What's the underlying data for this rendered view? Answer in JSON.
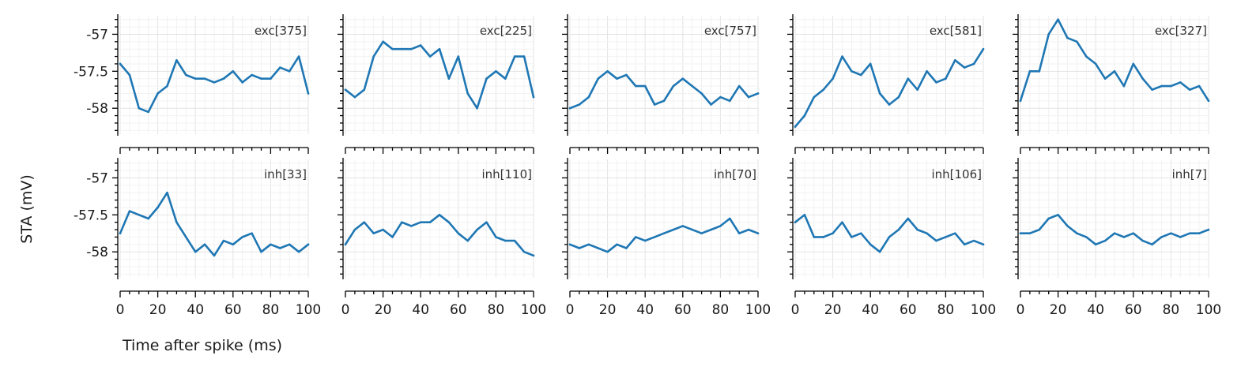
{
  "figure": {
    "ylabel": "STA (mV)",
    "xlabel": "Time after spike (ms)",
    "line_color": "#1f77b4",
    "grid": true
  },
  "chart_data": [
    {
      "type": "line",
      "label": "exc[375]",
      "x": [
        0,
        5,
        10,
        15,
        20,
        25,
        30,
        35,
        40,
        45,
        50,
        55,
        60,
        65,
        70,
        75,
        80,
        85,
        90,
        95,
        100
      ],
      "y": [
        -57.4,
        -57.55,
        -58.0,
        -58.05,
        -57.8,
        -57.7,
        -57.35,
        -57.55,
        -57.6,
        -57.6,
        -57.65,
        -57.6,
        -57.5,
        -57.65,
        -57.55,
        -57.6,
        -57.6,
        -57.45,
        -57.5,
        -57.3,
        -57.8
      ],
      "xlim": [
        0,
        100
      ],
      "ylim": [
        -58.35,
        -56.75
      ],
      "yticks": [
        -58,
        -57.5,
        -57
      ],
      "yticklabels": [
        "-58",
        "-57.5",
        "-57"
      ],
      "xticks": [
        0,
        20,
        40,
        60,
        80,
        100
      ],
      "xticklabels": [
        "0",
        "20",
        "40",
        "60",
        "80",
        "100"
      ]
    },
    {
      "type": "line",
      "label": "exc[225]",
      "x": [
        0,
        5,
        10,
        15,
        20,
        25,
        30,
        35,
        40,
        45,
        50,
        55,
        60,
        65,
        70,
        75,
        80,
        85,
        90,
        95,
        100
      ],
      "y": [
        -57.75,
        -57.85,
        -57.75,
        -57.3,
        -57.1,
        -57.2,
        -57.2,
        -57.2,
        -57.15,
        -57.3,
        -57.2,
        -57.6,
        -57.3,
        -57.8,
        -58.0,
        -57.6,
        -57.5,
        -57.6,
        -57.3,
        -57.3,
        -57.85
      ],
      "xlim": [
        0,
        100
      ],
      "ylim": [
        -58.35,
        -56.75
      ],
      "yticks": [
        -58,
        -57.5,
        -57
      ],
      "yticklabels": [
        "-58",
        "-57.5",
        "-57"
      ],
      "xticks": [
        0,
        20,
        40,
        60,
        80,
        100
      ],
      "xticklabels": [
        "0",
        "20",
        "40",
        "60",
        "80",
        "100"
      ]
    },
    {
      "type": "line",
      "label": "exc[757]",
      "x": [
        0,
        5,
        10,
        15,
        20,
        25,
        30,
        35,
        40,
        45,
        50,
        55,
        60,
        65,
        70,
        75,
        80,
        85,
        90,
        95,
        100
      ],
      "y": [
        -58.0,
        -57.95,
        -57.85,
        -57.6,
        -57.5,
        -57.6,
        -57.55,
        -57.7,
        -57.7,
        -57.95,
        -57.9,
        -57.7,
        -57.6,
        -57.7,
        -57.8,
        -57.95,
        -57.85,
        -57.9,
        -57.7,
        -57.85,
        -57.8
      ],
      "xlim": [
        0,
        100
      ],
      "ylim": [
        -58.35,
        -56.75
      ],
      "yticks": [
        -58,
        -57.5,
        -57
      ],
      "yticklabels": [
        "-58",
        "-57.5",
        "-57"
      ],
      "xticks": [
        0,
        20,
        40,
        60,
        80,
        100
      ],
      "xticklabels": [
        "0",
        "20",
        "40",
        "60",
        "80",
        "100"
      ]
    },
    {
      "type": "line",
      "label": "exc[581]",
      "x": [
        0,
        5,
        10,
        15,
        20,
        25,
        30,
        35,
        40,
        45,
        50,
        55,
        60,
        65,
        70,
        75,
        80,
        85,
        90,
        95,
        100
      ],
      "y": [
        -58.25,
        -58.1,
        -57.85,
        -57.75,
        -57.6,
        -57.3,
        -57.5,
        -57.55,
        -57.4,
        -57.8,
        -57.95,
        -57.85,
        -57.6,
        -57.75,
        -57.5,
        -57.65,
        -57.6,
        -57.35,
        -57.45,
        -57.4,
        -57.2
      ],
      "xlim": [
        0,
        100
      ],
      "ylim": [
        -58.35,
        -56.75
      ],
      "yticks": [
        -58,
        -57.5,
        -57
      ],
      "yticklabels": [
        "-58",
        "-57.5",
        "-57"
      ],
      "xticks": [
        0,
        20,
        40,
        60,
        80,
        100
      ],
      "xticklabels": [
        "0",
        "20",
        "40",
        "60",
        "80",
        "100"
      ]
    },
    {
      "type": "line",
      "label": "exc[327]",
      "x": [
        0,
        5,
        10,
        15,
        20,
        25,
        30,
        35,
        40,
        45,
        50,
        55,
        60,
        65,
        70,
        75,
        80,
        85,
        90,
        95,
        100
      ],
      "y": [
        -57.9,
        -57.5,
        -57.5,
        -57.0,
        -56.8,
        -57.05,
        -57.1,
        -57.3,
        -57.4,
        -57.6,
        -57.5,
        -57.7,
        -57.4,
        -57.6,
        -57.75,
        -57.7,
        -57.7,
        -57.65,
        -57.75,
        -57.7,
        -57.9
      ],
      "xlim": [
        0,
        100
      ],
      "ylim": [
        -58.35,
        -56.75
      ],
      "yticks": [
        -58,
        -57.5,
        -57
      ],
      "yticklabels": [
        "-58",
        "-57.5",
        "-57"
      ],
      "xticks": [
        0,
        20,
        40,
        60,
        80,
        100
      ],
      "xticklabels": [
        "0",
        "20",
        "40",
        "60",
        "80",
        "100"
      ]
    },
    {
      "type": "line",
      "label": "inh[33]",
      "x": [
        0,
        5,
        10,
        15,
        20,
        25,
        30,
        35,
        40,
        45,
        50,
        55,
        60,
        65,
        70,
        75,
        80,
        85,
        90,
        95,
        100
      ],
      "y": [
        -57.75,
        -57.45,
        -57.5,
        -57.55,
        -57.4,
        -57.2,
        -57.6,
        -57.8,
        -58.0,
        -57.9,
        -58.05,
        -57.85,
        -57.9,
        -57.8,
        -57.75,
        -58.0,
        -57.9,
        -57.95,
        -57.9,
        -58.0,
        -57.9
      ],
      "xlim": [
        0,
        100
      ],
      "ylim": [
        -58.35,
        -56.75
      ],
      "yticks": [
        -58,
        -57.5,
        -57
      ],
      "yticklabels": [
        "-58",
        "-57.5",
        "-57"
      ],
      "xticks": [
        0,
        20,
        40,
        60,
        80,
        100
      ],
      "xticklabels": [
        "0",
        "20",
        "40",
        "60",
        "80",
        "100"
      ]
    },
    {
      "type": "line",
      "label": "inh[110]",
      "x": [
        0,
        5,
        10,
        15,
        20,
        25,
        30,
        35,
        40,
        45,
        50,
        55,
        60,
        65,
        70,
        75,
        80,
        85,
        90,
        95,
        100
      ],
      "y": [
        -57.9,
        -57.7,
        -57.6,
        -57.75,
        -57.7,
        -57.8,
        -57.6,
        -57.65,
        -57.6,
        -57.6,
        -57.5,
        -57.6,
        -57.75,
        -57.85,
        -57.7,
        -57.6,
        -57.8,
        -57.85,
        -57.85,
        -58.0,
        -58.05
      ],
      "xlim": [
        0,
        100
      ],
      "ylim": [
        -58.35,
        -56.75
      ],
      "yticks": [
        -58,
        -57.5,
        -57
      ],
      "yticklabels": [
        "-58",
        "-57.5",
        "-57"
      ],
      "xticks": [
        0,
        20,
        40,
        60,
        80,
        100
      ],
      "xticklabels": [
        "0",
        "20",
        "40",
        "60",
        "80",
        "100"
      ]
    },
    {
      "type": "line",
      "label": "inh[70]",
      "x": [
        0,
        5,
        10,
        15,
        20,
        25,
        30,
        35,
        40,
        45,
        50,
        55,
        60,
        65,
        70,
        75,
        80,
        85,
        90,
        95,
        100
      ],
      "y": [
        -57.9,
        -57.95,
        -57.9,
        -57.95,
        -58.0,
        -57.9,
        -57.95,
        -57.8,
        -57.85,
        -57.8,
        -57.75,
        -57.7,
        -57.65,
        -57.7,
        -57.75,
        -57.7,
        -57.65,
        -57.55,
        -57.75,
        -57.7,
        -57.75
      ],
      "xlim": [
        0,
        100
      ],
      "ylim": [
        -58.35,
        -56.75
      ],
      "yticks": [
        -58,
        -57.5,
        -57
      ],
      "yticklabels": [
        "-58",
        "-57.5",
        "-57"
      ],
      "xticks": [
        0,
        20,
        40,
        60,
        80,
        100
      ],
      "xticklabels": [
        "0",
        "20",
        "40",
        "60",
        "80",
        "100"
      ]
    },
    {
      "type": "line",
      "label": "inh[106]",
      "x": [
        0,
        5,
        10,
        15,
        20,
        25,
        30,
        35,
        40,
        45,
        50,
        55,
        60,
        65,
        70,
        75,
        80,
        85,
        90,
        95,
        100
      ],
      "y": [
        -57.6,
        -57.5,
        -57.8,
        -57.8,
        -57.75,
        -57.6,
        -57.8,
        -57.75,
        -57.9,
        -58.0,
        -57.8,
        -57.7,
        -57.55,
        -57.7,
        -57.75,
        -57.85,
        -57.8,
        -57.75,
        -57.9,
        -57.85,
        -57.9
      ],
      "xlim": [
        0,
        100
      ],
      "ylim": [
        -58.35,
        -56.75
      ],
      "yticks": [
        -58,
        -57.5,
        -57
      ],
      "yticklabels": [
        "-58",
        "-57.5",
        "-57"
      ],
      "xticks": [
        0,
        20,
        40,
        60,
        80,
        100
      ],
      "xticklabels": [
        "0",
        "20",
        "40",
        "60",
        "80",
        "100"
      ]
    },
    {
      "type": "line",
      "label": "inh[7]",
      "x": [
        0,
        5,
        10,
        15,
        20,
        25,
        30,
        35,
        40,
        45,
        50,
        55,
        60,
        65,
        70,
        75,
        80,
        85,
        90,
        95,
        100
      ],
      "y": [
        -57.75,
        -57.75,
        -57.7,
        -57.55,
        -57.5,
        -57.65,
        -57.75,
        -57.8,
        -57.9,
        -57.85,
        -57.75,
        -57.8,
        -57.75,
        -57.85,
        -57.9,
        -57.8,
        -57.75,
        -57.8,
        -57.75,
        -57.75,
        -57.7
      ],
      "xlim": [
        0,
        100
      ],
      "ylim": [
        -58.35,
        -56.75
      ],
      "yticks": [
        -58,
        -57.5,
        -57
      ],
      "yticklabels": [
        "-58",
        "-57.5",
        "-57"
      ],
      "xticks": [
        0,
        20,
        40,
        60,
        80,
        100
      ],
      "xticklabels": [
        "0",
        "20",
        "40",
        "60",
        "80",
        "100"
      ]
    }
  ]
}
